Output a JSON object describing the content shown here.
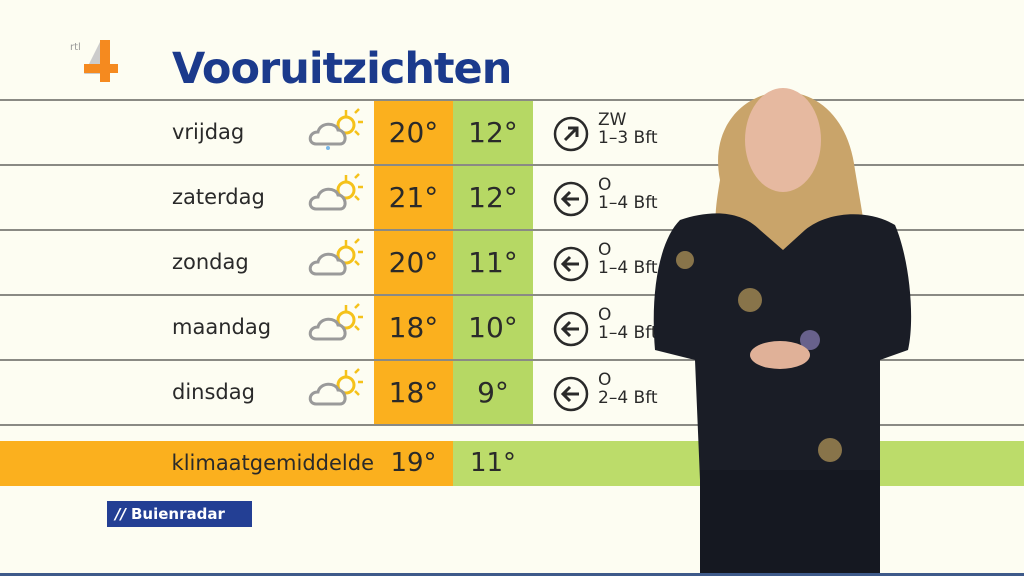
{
  "header": {
    "logo": "rtl 4",
    "title": "Vooruitzichten"
  },
  "forecast": [
    {
      "day": "vrijdag",
      "icon": "cloud-sun-rain-icon",
      "max": "20°",
      "min": "12°",
      "wind_dir": "ZW",
      "wind_force": "1–3 Bft",
      "arrow": "arrow-northeast-icon"
    },
    {
      "day": "zaterdag",
      "icon": "cloud-sun-icon",
      "max": "21°",
      "min": "12°",
      "wind_dir": "O",
      "wind_force": "1–4 Bft",
      "arrow": "arrow-west-icon"
    },
    {
      "day": "zondag",
      "icon": "cloud-sun-icon",
      "max": "20°",
      "min": "11°",
      "wind_dir": "O",
      "wind_force": "1–4 Bft",
      "arrow": "arrow-west-icon"
    },
    {
      "day": "maandag",
      "icon": "cloud-sun-icon",
      "max": "18°",
      "min": "10°",
      "wind_dir": "O",
      "wind_force": "1–4 Bft",
      "arrow": "arrow-west-icon"
    },
    {
      "day": "dinsdag",
      "icon": "cloud-sun-icon",
      "max": "18°",
      "min": "9°",
      "wind_dir": "O",
      "wind_force": "2–4 Bft",
      "arrow": "arrow-west-icon"
    }
  ],
  "climate": {
    "label": "klimaatgemiddelde",
    "max": "19°",
    "min": "11°"
  },
  "sponsor": {
    "label": "Buienradar"
  },
  "colors": {
    "max": "#fbb01e",
    "min": "#b6d864",
    "title": "#1b3a8c",
    "sponsor": "#233f94"
  }
}
